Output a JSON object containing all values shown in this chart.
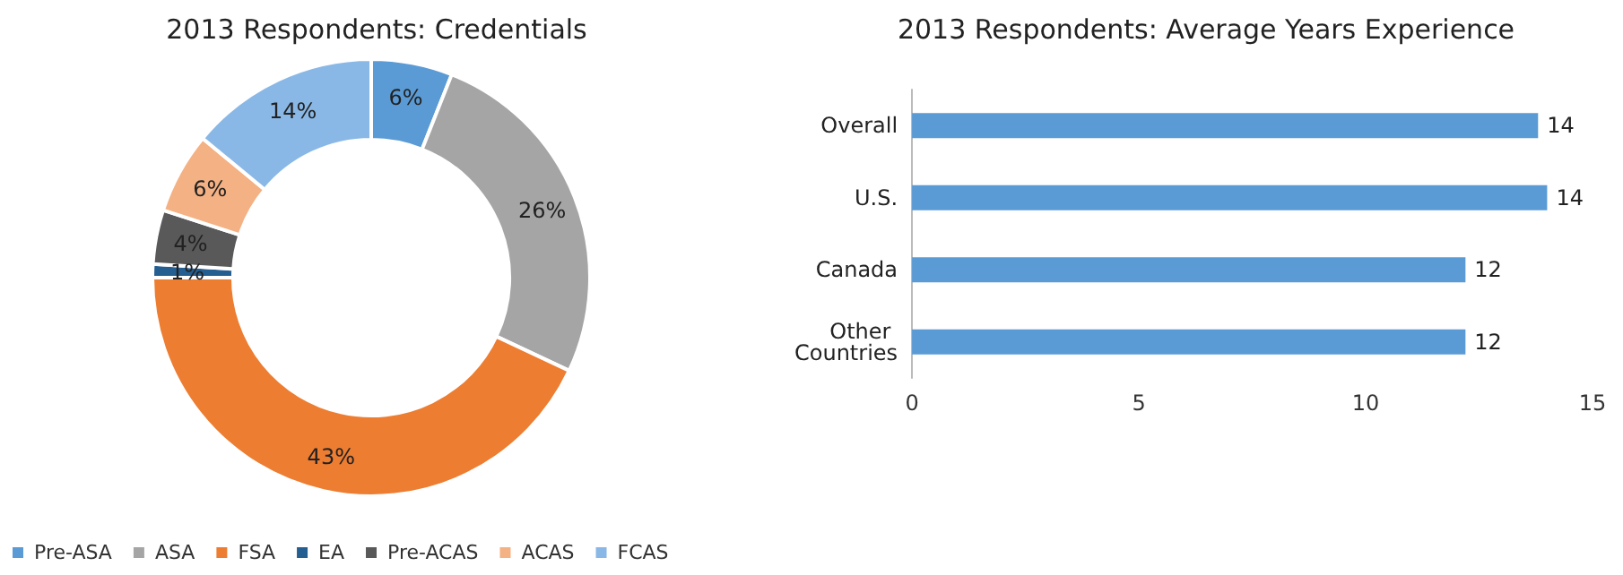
{
  "chart_data": [
    {
      "type": "donut",
      "title": "2013 Respondents: Credentials",
      "categories": [
        "Pre-ASA",
        "ASA",
        "FSA",
        "EA",
        "Pre-ACAS",
        "ACAS",
        "FCAS"
      ],
      "values": [
        6,
        26,
        43,
        1,
        4,
        6,
        14
      ],
      "colors": [
        "#5b9bd5",
        "#a5a5a5",
        "#ed7d31",
        "#255e91",
        "#595959",
        "#f4b183",
        "#8ab8e6"
      ],
      "value_labels": [
        "6%",
        "26%",
        "43%",
        "1%",
        "4%",
        "6%",
        "14%"
      ],
      "legend": "bottom"
    },
    {
      "type": "bar",
      "orientation": "horizontal",
      "title": "2013 Respondents: Average Years Experience",
      "categories": [
        "Overall",
        "U.S.",
        "Canada",
        "Other Countries"
      ],
      "values": [
        13.8,
        14.0,
        12.2,
        12.2
      ],
      "value_labels": [
        "14",
        "14",
        "12",
        "12"
      ],
      "color": "#5b9bd5",
      "xlim": [
        0,
        15
      ],
      "xticks": [
        0,
        5,
        10,
        15
      ],
      "grid": false
    }
  ]
}
